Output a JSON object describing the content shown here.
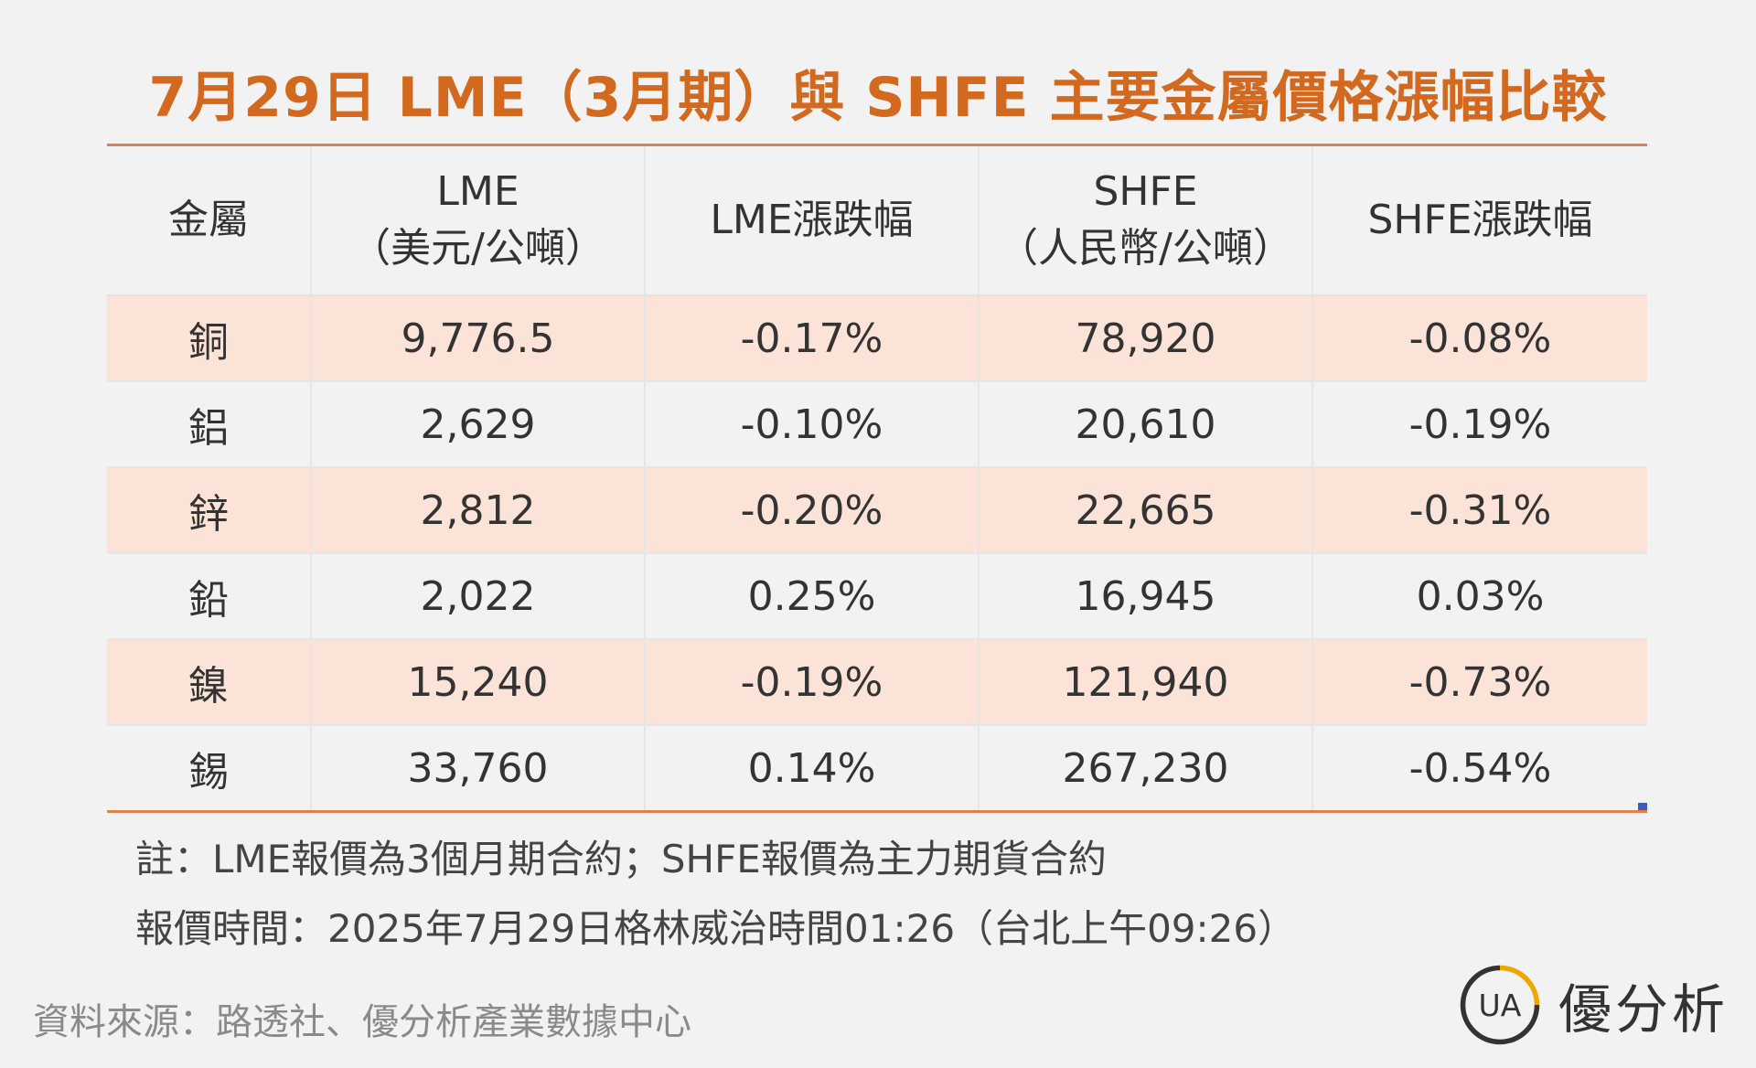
{
  "title": "7月29日 LME（3月期）與 SHFE 主要金屬價格漲幅比較",
  "table": {
    "headers": [
      {
        "line1": "金屬",
        "line2": ""
      },
      {
        "line1": "LME",
        "line2": "（美元/公噸）"
      },
      {
        "line1": "LME漲跌幅",
        "line2": ""
      },
      {
        "line1": "SHFE",
        "line2": "（人民幣/公噸）"
      },
      {
        "line1": "SHFE漲跌幅",
        "line2": ""
      }
    ],
    "rows": [
      [
        "銅",
        "9,776.5",
        "-0.17%",
        "78,920",
        "-0.08%"
      ],
      [
        "鋁",
        "2,629",
        "-0.10%",
        "20,610",
        "-0.19%"
      ],
      [
        "鋅",
        "2,812",
        "-0.20%",
        "22,665",
        "-0.31%"
      ],
      [
        "鉛",
        "2,022",
        "0.25%",
        "16,945",
        "0.03%"
      ],
      [
        "鎳",
        "15,240",
        "-0.19%",
        "121,940",
        "-0.73%"
      ],
      [
        "錫",
        "33,760",
        "0.14%",
        "267,230",
        "-0.54%"
      ]
    ]
  },
  "notes": [
    "註：LME報價為3個月期合約；SHFE報價為主力期貨合約",
    "報價時間：2025年7月29日格林威治時間01:26（台北上午09:26）"
  ],
  "source": "資料來源：路透社、優分析產業數據中心",
  "brand": {
    "name": "優分析",
    "logo_text": "UA",
    "icon": "ua-logo-icon"
  },
  "colors": {
    "title": "#d2691e",
    "rule": "#e0814a",
    "row_shade": "#fbe3d7",
    "background": "#f2f2f2",
    "logo_accent": "#f0a500"
  }
}
